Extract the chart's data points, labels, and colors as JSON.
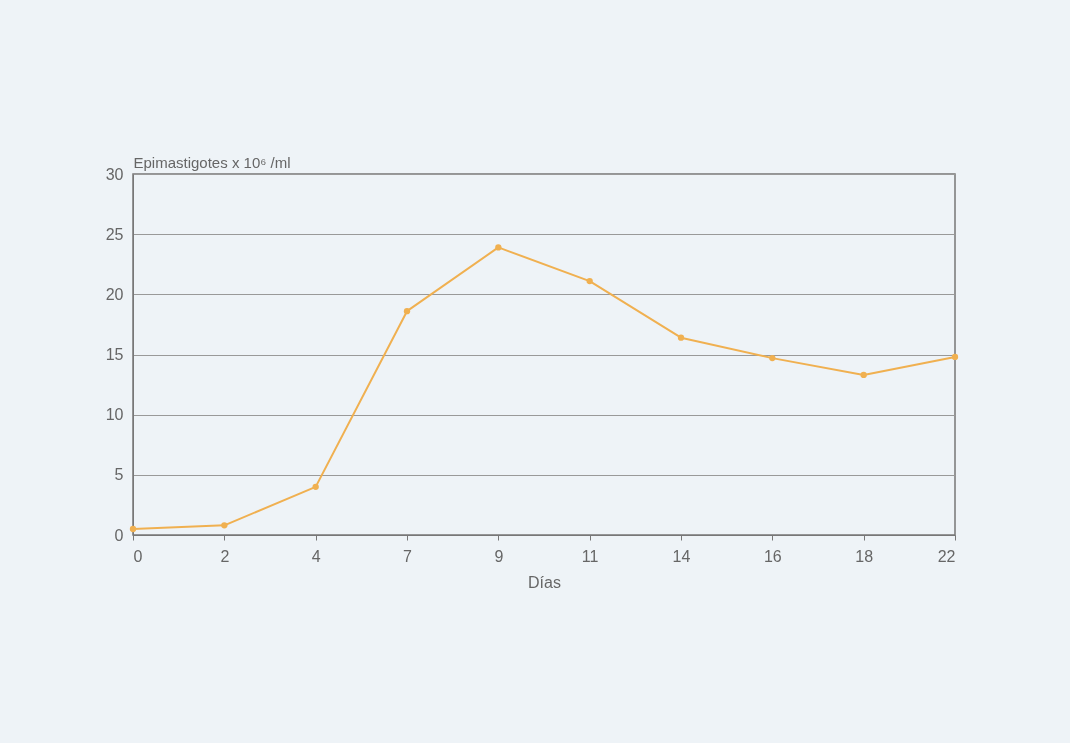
{
  "chart_data": {
    "type": "line",
    "xlabel": "Días",
    "ylabel": "Epimastigotes x 10⁶ /ml",
    "categories": [
      "0",
      "2",
      "4",
      "7",
      "9",
      "11",
      "14",
      "16",
      "18",
      "22"
    ],
    "series": [
      {
        "color": "#f0b050",
        "values": [
          0.5,
          0.8,
          4.0,
          18.6,
          23.9,
          21.1,
          16.4,
          14.7,
          13.3,
          14.8
        ]
      }
    ],
    "ylim": [
      0,
      30
    ],
    "yticks": [
      0,
      5,
      10,
      15,
      20,
      25,
      30
    ],
    "grid": "y",
    "marker": "circle",
    "line_style": "solid"
  }
}
